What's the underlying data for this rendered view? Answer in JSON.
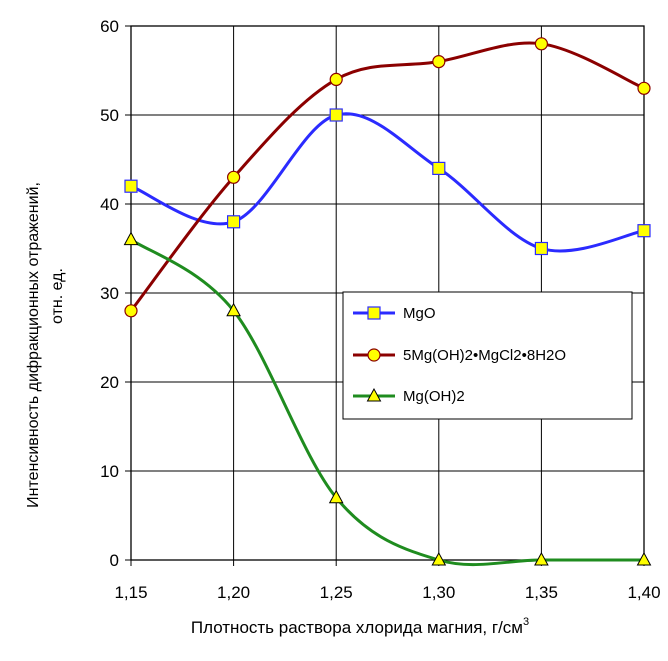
{
  "chart_data": {
    "type": "line",
    "categories": [
      "1,15",
      "1,20",
      "1,25",
      "1,30",
      "1,35",
      "1,40"
    ],
    "series": [
      {
        "name": "MgO",
        "values": [
          42,
          38,
          50,
          44,
          35,
          37
        ],
        "color": "#2B2BFF",
        "marker": "square",
        "marker_color": "#FFFF00"
      },
      {
        "name": "5Mg(OH)2•MgCl2•8H2O",
        "values": [
          28,
          43,
          54,
          56,
          58,
          53
        ],
        "color": "#8B0000",
        "marker": "circle",
        "marker_color": "#FFFF00"
      },
      {
        "name": "Mg(OH)2",
        "values": [
          36,
          28,
          7,
          0,
          0,
          0
        ],
        "color": "#1F8C1F",
        "marker": "triangle",
        "marker_color": "#FFFF00"
      }
    ],
    "xlabel": {
      "main": "Плотность раствора хлорида магния, г/см",
      "sup": "3"
    },
    "ylabel": {
      "line1": "Интенсивность дифракционных отражений,",
      "line2": "отн. ед."
    },
    "ylim": [
      0,
      60
    ],
    "yticks": [
      0,
      10,
      20,
      30,
      40,
      50,
      60
    ],
    "grid": true,
    "smooth": true,
    "legend_position": "center-right"
  }
}
